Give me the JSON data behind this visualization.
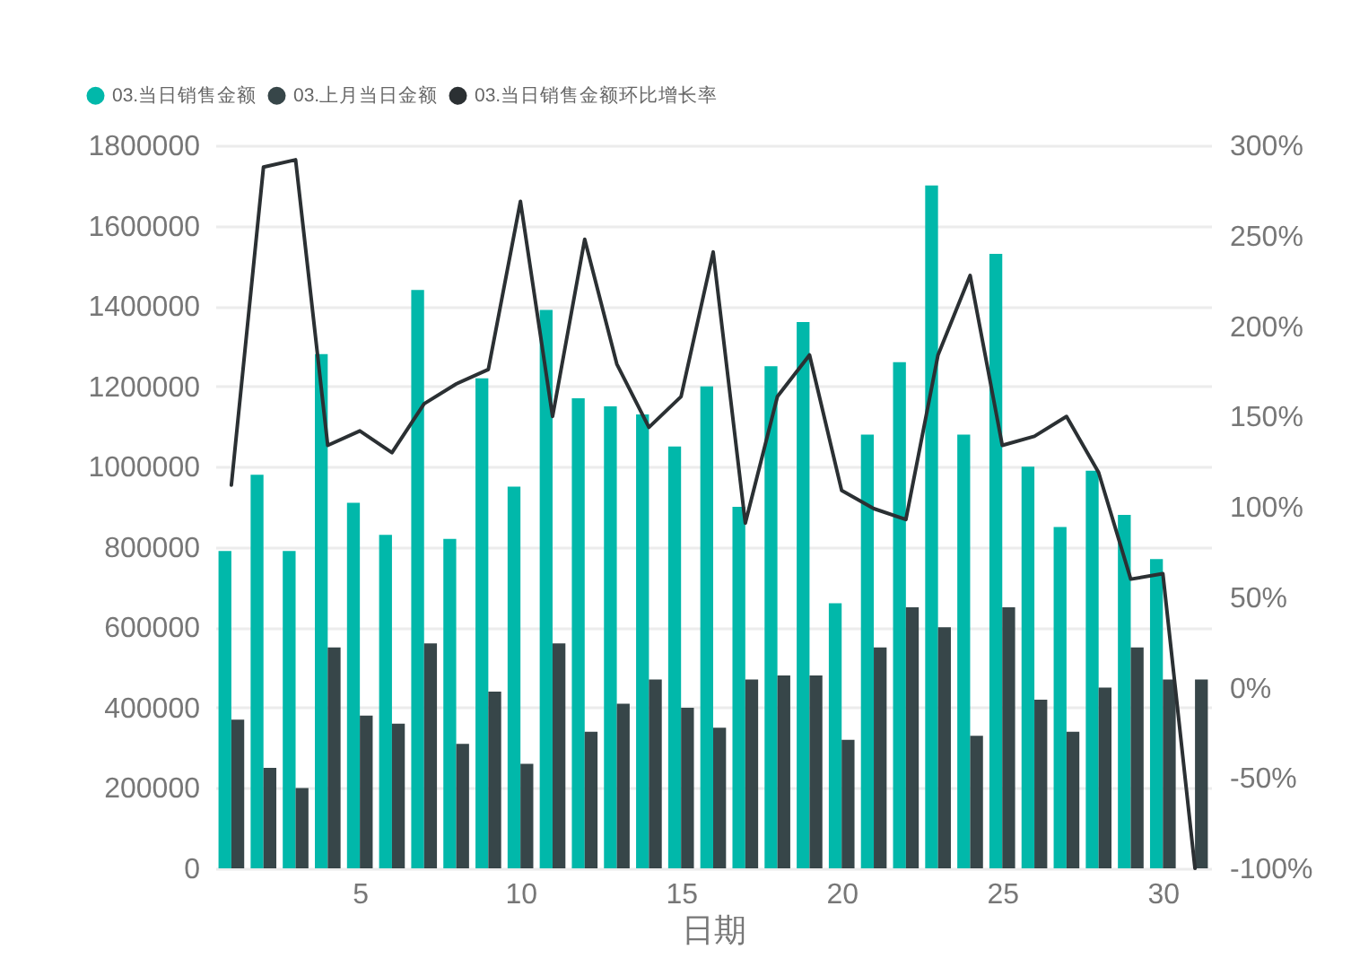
{
  "chart_data": {
    "type": "bar",
    "xlabel": "日期",
    "x": [
      1,
      2,
      3,
      4,
      5,
      6,
      7,
      8,
      9,
      10,
      11,
      12,
      13,
      14,
      15,
      16,
      17,
      18,
      19,
      20,
      21,
      22,
      23,
      24,
      25,
      26,
      27,
      28,
      29,
      30,
      31
    ],
    "xlim": [
      0.5,
      31.5
    ],
    "xticks": [
      5,
      10,
      15,
      20,
      25,
      30
    ],
    "ylim": [
      0,
      1800000
    ],
    "yticks": [
      0,
      200000,
      400000,
      600000,
      800000,
      1000000,
      1200000,
      1400000,
      1600000,
      1800000
    ],
    "y2lim": [
      -100,
      300
    ],
    "y2ticks": [
      {
        "value": -100,
        "label": "-100%"
      },
      {
        "value": -50,
        "label": "-50%"
      },
      {
        "value": 0,
        "label": "0%"
      },
      {
        "value": 50,
        "label": "50%"
      },
      {
        "value": 100,
        "label": "100%"
      },
      {
        "value": 150,
        "label": "150%"
      },
      {
        "value": 200,
        "label": "200%"
      },
      {
        "value": 250,
        "label": "250%"
      },
      {
        "value": 300,
        "label": "300%"
      }
    ],
    "grid": "y",
    "legend": "top left",
    "line_style": "solid",
    "series": [
      {
        "name": "03.当日销售金额",
        "color": "#01b8aa",
        "values": [
          790000,
          980000,
          790000,
          1280000,
          910000,
          830000,
          1440000,
          820000,
          1220000,
          950000,
          1390000,
          1170000,
          1150000,
          1130000,
          1050000,
          1200000,
          900000,
          1250000,
          1360000,
          660000,
          1080000,
          1260000,
          1700000,
          1080000,
          1530000,
          1000000,
          850000,
          990000,
          880000,
          770000,
          null
        ]
      },
      {
        "name": "03.上月当日金额",
        "color": "#374649",
        "values": [
          370000,
          250000,
          200000,
          550000,
          380000,
          360000,
          560000,
          310000,
          440000,
          260000,
          560000,
          340000,
          410000,
          470000,
          400000,
          350000,
          470000,
          480000,
          480000,
          320000,
          550000,
          650000,
          600000,
          330000,
          650000,
          420000,
          340000,
          450000,
          550000,
          470000,
          470000
        ]
      },
      {
        "name": "03.当日销售金额环比增长率",
        "color": "#2b3033",
        "type": "line",
        "axis": "y2",
        "values": [
          112,
          288,
          292,
          134,
          142,
          130,
          157,
          168,
          176,
          269,
          150,
          248,
          179,
          144,
          161,
          241,
          91,
          161,
          184,
          109,
          99,
          93,
          184,
          228,
          134,
          139,
          150,
          119,
          60,
          63,
          -100
        ]
      }
    ]
  }
}
